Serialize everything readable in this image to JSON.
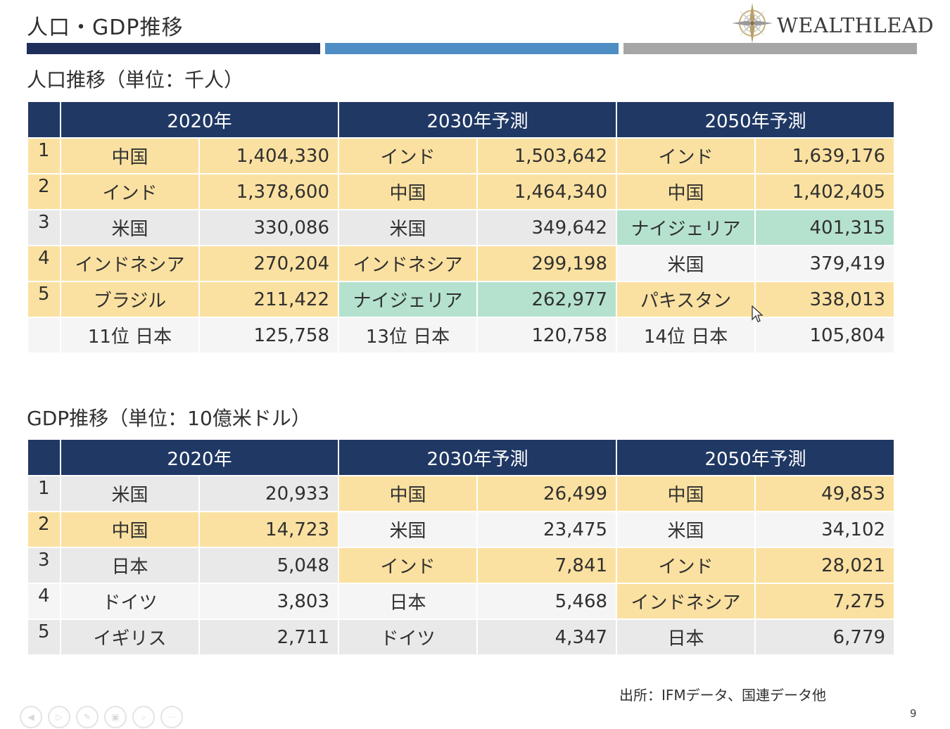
{
  "slide": {
    "title": "人口・GDP推移",
    "logo_text": "WEALTHLEAD",
    "page_number": "9",
    "source": "出所：IFMデータ、国連データ他"
  },
  "colors": {
    "navy": "#203864",
    "highlight_yellow": "#fbe1a1",
    "highlight_teal": "#b5e2cf",
    "row_gray": "#e9e9e9",
    "bar_blue": "#4f8ec4",
    "bar_gray": "#a6a6a6"
  },
  "population": {
    "title": "人口推移（単位：千人）",
    "headers": [
      "2020年",
      "2030年予測",
      "2050年予測"
    ],
    "rows": [
      {
        "rank": "1",
        "c2020": {
          "name": "中国",
          "value": "1,404,330"
        },
        "c2030": {
          "name": "インド",
          "value": "1,503,642"
        },
        "c2050": {
          "name": "インド",
          "value": "1,639,176"
        }
      },
      {
        "rank": "2",
        "c2020": {
          "name": "インド",
          "value": "1,378,600"
        },
        "c2030": {
          "name": "中国",
          "value": "1,464,340"
        },
        "c2050": {
          "name": "中国",
          "value": "1,402,405"
        }
      },
      {
        "rank": "3",
        "c2020": {
          "name": "米国",
          "value": "330,086"
        },
        "c2030": {
          "name": "米国",
          "value": "349,642"
        },
        "c2050": {
          "name": "ナイジェリア",
          "value": "401,315"
        }
      },
      {
        "rank": "4",
        "c2020": {
          "name": "インドネシア",
          "value": "270,204"
        },
        "c2030": {
          "name": "インドネシア",
          "value": "299,198"
        },
        "c2050": {
          "name": "米国",
          "value": "379,419"
        }
      },
      {
        "rank": "5",
        "c2020": {
          "name": "ブラジル",
          "value": "211,422"
        },
        "c2030": {
          "name": "ナイジェリア",
          "value": "262,977"
        },
        "c2050": {
          "name": "パキスタン",
          "value": "338,013"
        }
      },
      {
        "rank": "",
        "c2020": {
          "name": "11位 日本",
          "value": "125,758"
        },
        "c2030": {
          "name": "13位 日本",
          "value": "120,758"
        },
        "c2050": {
          "name": "14位 日本",
          "value": "105,804"
        }
      }
    ]
  },
  "gdp": {
    "title": "GDP推移（単位：10億米ドル）",
    "headers": [
      "2020年",
      "2030年予測",
      "2050年予測"
    ],
    "rows": [
      {
        "rank": "1",
        "c2020": {
          "name": "米国",
          "value": "20,933"
        },
        "c2030": {
          "name": "中国",
          "value": "26,499"
        },
        "c2050": {
          "name": "中国",
          "value": "49,853"
        }
      },
      {
        "rank": "2",
        "c2020": {
          "name": "中国",
          "value": "14,723"
        },
        "c2030": {
          "name": "米国",
          "value": "23,475"
        },
        "c2050": {
          "name": "米国",
          "value": "34,102"
        }
      },
      {
        "rank": "3",
        "c2020": {
          "name": "日本",
          "value": "5,048"
        },
        "c2030": {
          "name": "インド",
          "value": "7,841"
        },
        "c2050": {
          "name": "インド",
          "value": "28,021"
        }
      },
      {
        "rank": "4",
        "c2020": {
          "name": "ドイツ",
          "value": "3,803"
        },
        "c2030": {
          "name": "日本",
          "value": "5,468"
        },
        "c2050": {
          "name": "インドネシア",
          "value": "7,275"
        }
      },
      {
        "rank": "5",
        "c2020": {
          "name": "イギリス",
          "value": "2,711"
        },
        "c2030": {
          "name": "ドイツ",
          "value": "4,347"
        },
        "c2050": {
          "name": "日本",
          "value": "6,779"
        }
      }
    ]
  },
  "player_controls": [
    {
      "icon": "prev-icon"
    },
    {
      "icon": "play-icon"
    },
    {
      "icon": "pen-icon"
    },
    {
      "icon": "slides-icon"
    },
    {
      "icon": "zoom-icon"
    },
    {
      "icon": "more-icon"
    }
  ]
}
